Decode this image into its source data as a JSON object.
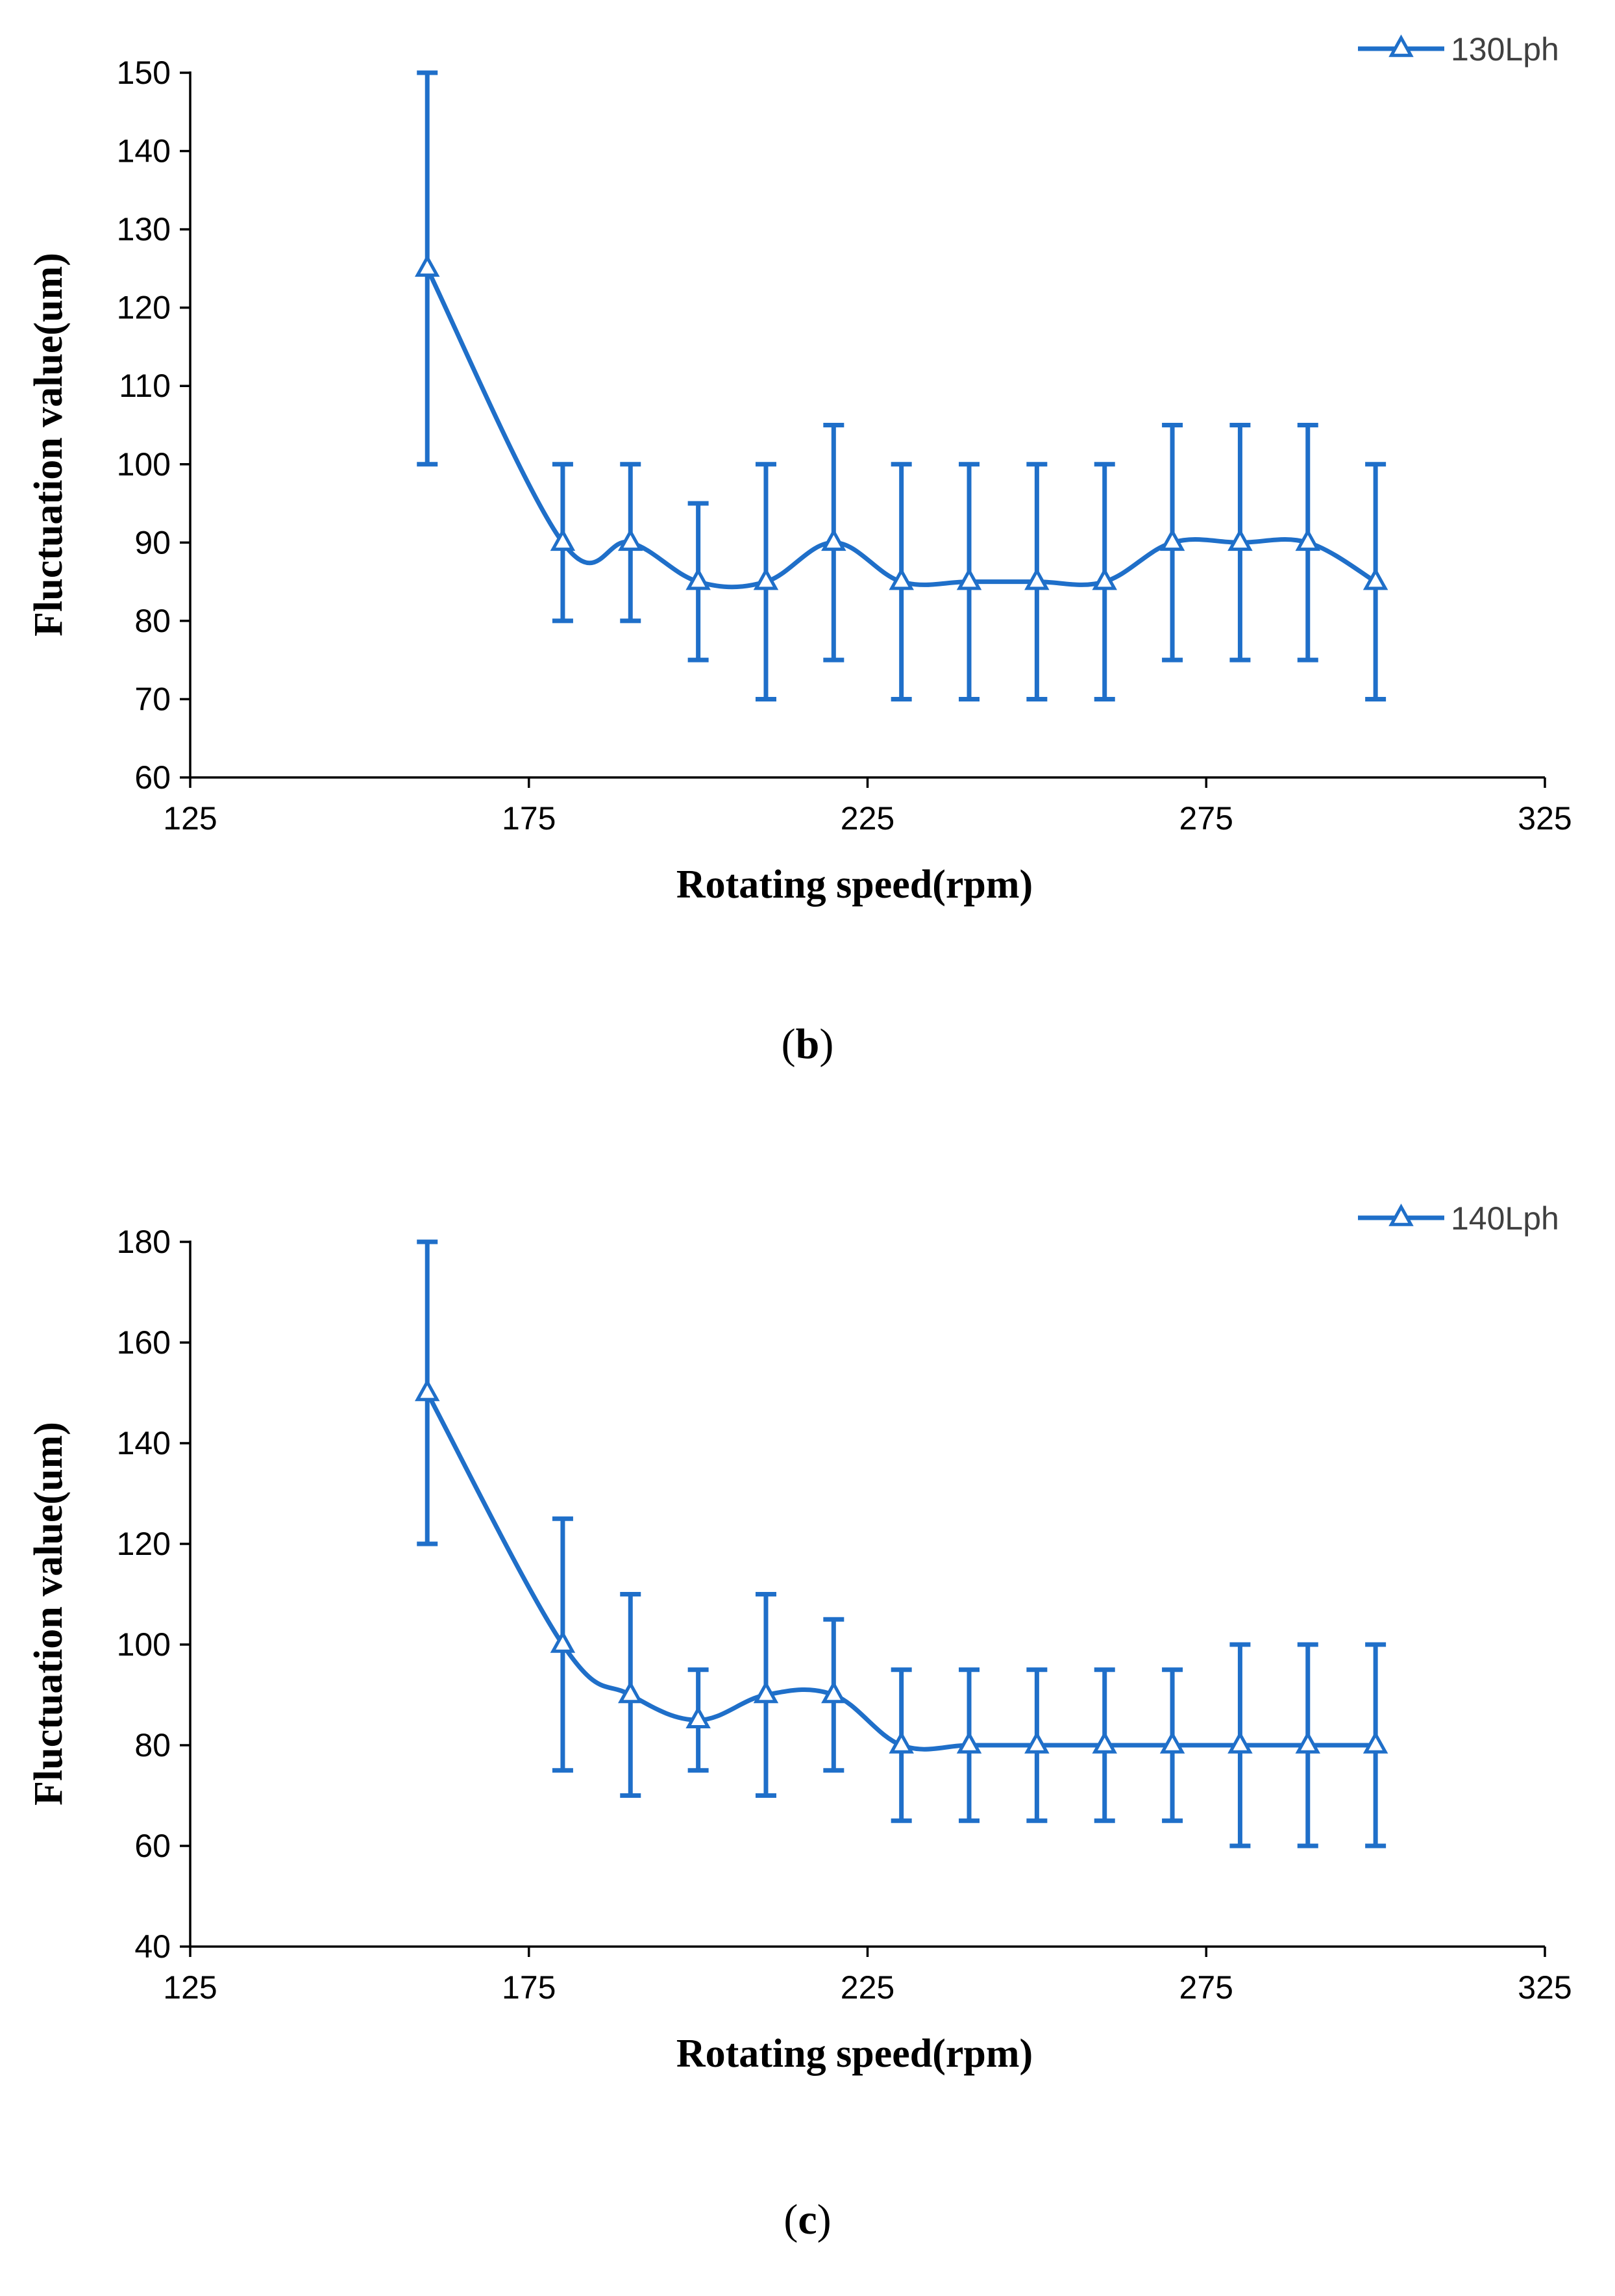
{
  "chart_data": [
    {
      "type": "line",
      "panel": "b",
      "caption": {
        "open": "(",
        "letter": "b",
        "close": ")"
      },
      "xlabel": "Rotating speed(rpm)",
      "ylabel": "Fluctuation value(um)",
      "xlim": [
        125,
        325
      ],
      "ylim": [
        60,
        150
      ],
      "xticks": [
        125,
        175,
        225,
        275,
        325
      ],
      "yticks": [
        60,
        70,
        80,
        90,
        100,
        110,
        120,
        130,
        140,
        150
      ],
      "grid": false,
      "legend_position": "top-right",
      "color": "#1F6FC9",
      "marker": "open-triangle",
      "series": [
        {
          "name": "130Lph",
          "x": [
            160,
            180,
            190,
            200,
            210,
            220,
            230,
            240,
            250,
            260,
            270,
            280,
            290,
            300
          ],
          "values": [
            125,
            90,
            90,
            85,
            85,
            90,
            85,
            85,
            85,
            85,
            90,
            90,
            90,
            85
          ],
          "err_low": [
            100,
            80,
            80,
            75,
            70,
            75,
            70,
            70,
            70,
            70,
            75,
            75,
            75,
            70
          ],
          "err_high": [
            150,
            100,
            100,
            95,
            100,
            105,
            100,
            100,
            100,
            100,
            105,
            105,
            105,
            100
          ]
        }
      ]
    },
    {
      "type": "line",
      "panel": "c",
      "caption": {
        "open": "(",
        "letter": "c",
        "close": ")"
      },
      "xlabel": "Rotating speed(rpm)",
      "ylabel": "Fluctuation value(um)",
      "xlim": [
        125,
        325
      ],
      "ylim": [
        40,
        180
      ],
      "xticks": [
        125,
        175,
        225,
        275,
        325
      ],
      "yticks": [
        40,
        60,
        80,
        100,
        120,
        140,
        160,
        180
      ],
      "grid": false,
      "legend_position": "top-right",
      "color": "#1F6FC9",
      "marker": "open-triangle",
      "series": [
        {
          "name": "140Lph",
          "x": [
            160,
            180,
            190,
            200,
            210,
            220,
            230,
            240,
            250,
            260,
            270,
            280,
            290,
            300
          ],
          "values": [
            150,
            100,
            90,
            85,
            90,
            90,
            80,
            80,
            80,
            80,
            80,
            80,
            80,
            80
          ],
          "err_low": [
            120,
            75,
            70,
            75,
            70,
            75,
            65,
            65,
            65,
            65,
            65,
            60,
            60,
            60
          ],
          "err_high": [
            180,
            125,
            110,
            95,
            110,
            105,
            95,
            95,
            95,
            95,
            95,
            100,
            100,
            100
          ]
        }
      ]
    }
  ]
}
